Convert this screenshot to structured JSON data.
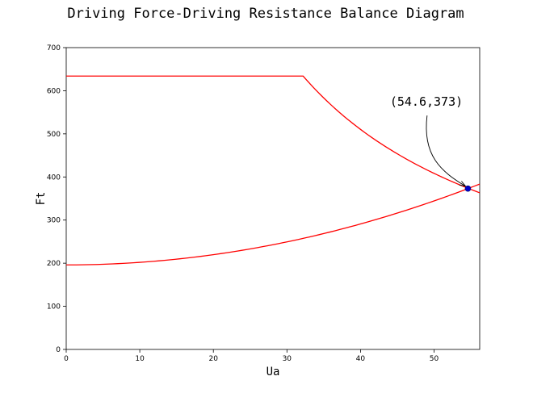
{
  "chart_data": {
    "type": "line",
    "title": "Driving Force-Driving Resistance Balance Diagram",
    "xlabel": "Ua",
    "ylabel": "Ft",
    "xlim": [
      0,
      56.2
    ],
    "ylim": [
      0,
      700
    ],
    "xticks": [
      0,
      10,
      20,
      30,
      40,
      50
    ],
    "yticks": [
      0,
      100,
      200,
      300,
      400,
      500,
      600,
      700
    ],
    "grid": false,
    "line_color": "#ff0000",
    "series": [
      {
        "x": [
          0,
          32.2,
          35,
          38,
          41,
          44,
          47,
          50,
          53,
          56.2
        ],
        "values": [
          634,
          634,
          583,
          537,
          497,
          463,
          434,
          408,
          385,
          363
        ]
      },
      {
        "x": [
          0,
          5,
          10,
          15,
          20,
          25,
          30,
          35,
          40,
          45,
          50,
          54.6,
          56.2
        ],
        "values": [
          196,
          198,
          203,
          210,
          220,
          233,
          248,
          266,
          287,
          311,
          338,
          373,
          383
        ]
      }
    ],
    "marker": {
      "x": 54.6,
      "y": 373,
      "color": "#0000cc"
    },
    "annotation": {
      "text": "(54.6,373)",
      "x_text": 44,
      "y_text": 565,
      "x_point": 54.6,
      "y_point": 373
    }
  }
}
